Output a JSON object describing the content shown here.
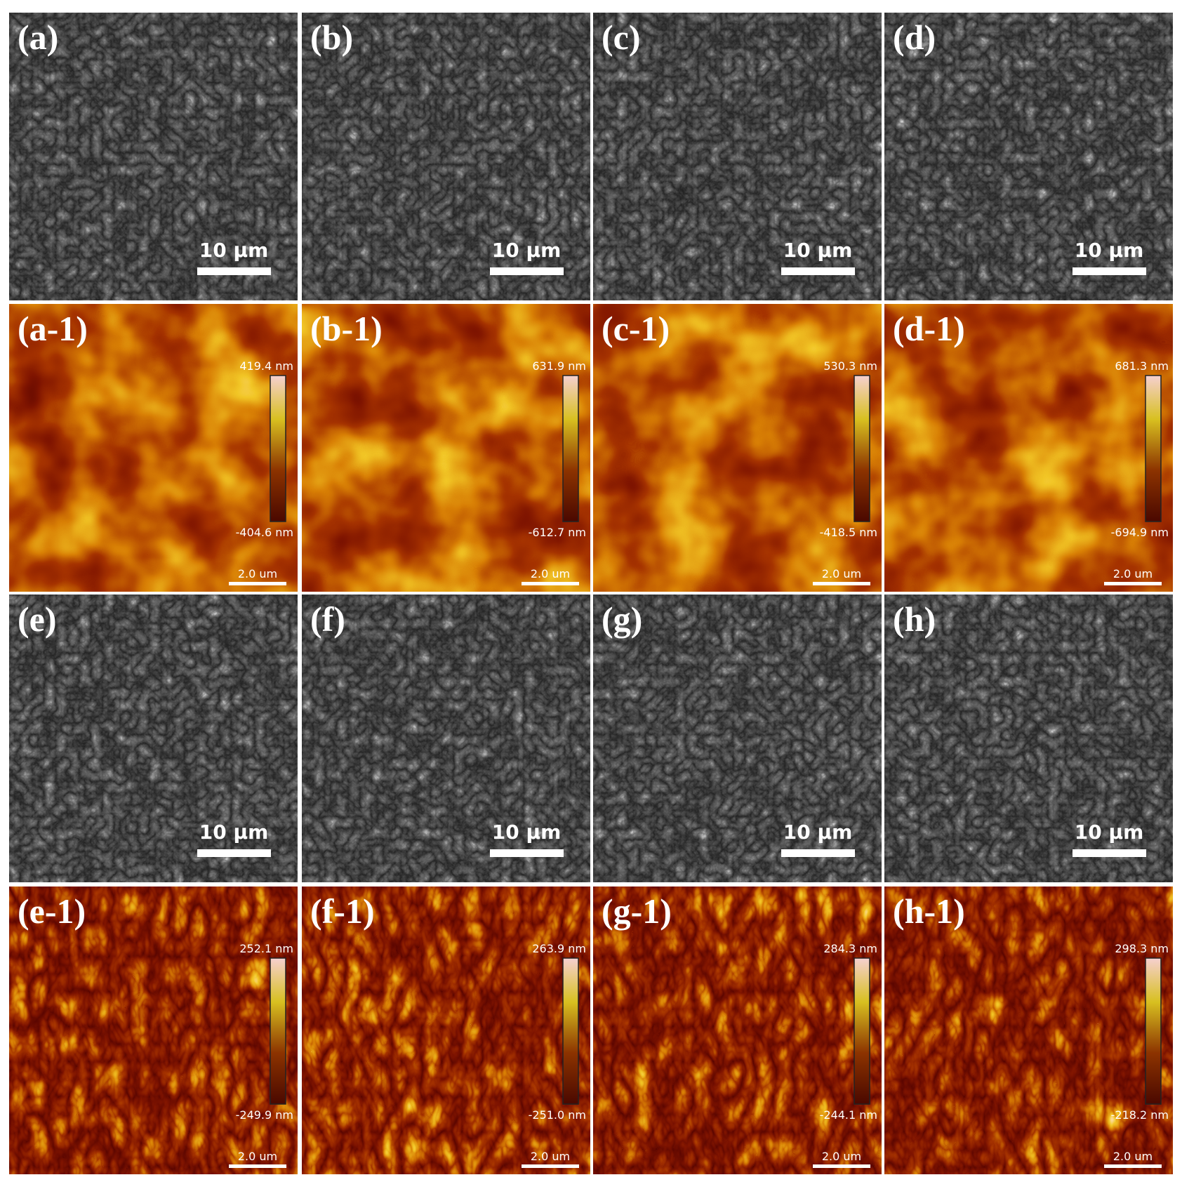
{
  "panels": [
    {
      "label": "(a)",
      "scale_bar": "10 μm"
    },
    {
      "label": "(b)",
      "scale_bar": "10 μm"
    },
    {
      "label": "(c)",
      "scale_bar": "10 μm"
    },
    {
      "label": "(d)",
      "scale_bar": "10 μm"
    },
    {
      "label": "(a-1)",
      "max": "419.4 nm",
      "min": "-404.6 nm",
      "scale_bar": "2.0 um"
    },
    {
      "label": "(b-1)",
      "max": "631.9 nm",
      "min": "-612.7 nm",
      "scale_bar": "2.0 um"
    },
    {
      "label": "(c-1)",
      "max": "530.3 nm",
      "min": "-418.5 nm",
      "scale_bar": "2.0 um"
    },
    {
      "label": "(d-1)",
      "max": "681.3 nm",
      "min": "-694.9 nm",
      "scale_bar": "2.0 um"
    },
    {
      "label": "(e)",
      "scale_bar": "10 μm"
    },
    {
      "label": "(f)",
      "scale_bar": "10 μm"
    },
    {
      "label": "(g)",
      "scale_bar": "10 μm"
    },
    {
      "label": "(h)",
      "scale_bar": "10 μm"
    },
    {
      "label": "(e-1)",
      "max": "252.1 nm",
      "min": "-249.9 nm",
      "scale_bar": "2.0 um"
    },
    {
      "label": "(f-1)",
      "max": "263.9 nm",
      "min": "-251.0 nm",
      "scale_bar": "2.0 um"
    },
    {
      "label": "(g-1)",
      "max": "284.3 nm",
      "min": "-244.1 nm",
      "scale_bar": "2.0 um"
    },
    {
      "label": "(h-1)",
      "max": "298.3 nm",
      "min": "-218.2 nm",
      "scale_bar": "2.0 um"
    }
  ]
}
